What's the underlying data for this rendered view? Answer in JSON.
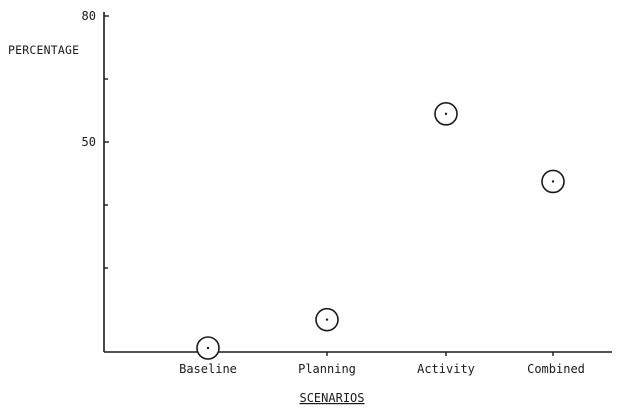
{
  "chart_data": {
    "type": "scatter",
    "title": "",
    "xlabel": "SCENARIOS",
    "ylabel": "PERCENTAGE",
    "categories": [
      "Baseline",
      "Planning",
      "Activity",
      "Combined"
    ],
    "values": [
      0,
      7.7,
      56.7,
      40.6
    ],
    "ylim": [
      0,
      80
    ],
    "yticks": [
      {
        "value": 80,
        "label": "80"
      },
      {
        "value": 50,
        "label": "50"
      }
    ],
    "grid": false,
    "marker": "open-circle-with-center-dot"
  }
}
